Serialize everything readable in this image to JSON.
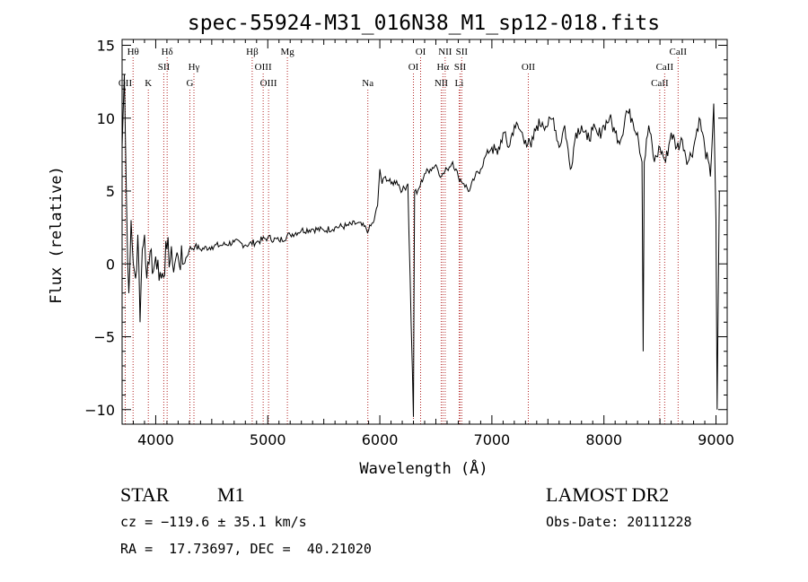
{
  "chart_data": {
    "type": "line",
    "title": "spec-55924-M31_016N38_M1_sp12-018.fits",
    "xlabel": "Wavelength (Å)",
    "ylabel": "Flux (relative)",
    "xlim": [
      3700,
      9100
    ],
    "ylim": [
      -11,
      15.4
    ],
    "xticks": [
      4000,
      5000,
      6000,
      7000,
      8000,
      9000
    ],
    "yticks": [
      -10,
      -5,
      0,
      5,
      10,
      15
    ],
    "grid": false,
    "line_color": "#000000",
    "marker_color": "#b22222",
    "spectral_lines": [
      {
        "label": "Hθ",
        "x": 3798,
        "row": 0
      },
      {
        "label": "OII",
        "x": 3728,
        "row": 2
      },
      {
        "label": "K",
        "x": 3934,
        "row": 2
      },
      {
        "label": "Hδ",
        "x": 4102,
        "row": 0
      },
      {
        "label": "SII",
        "x": 4072,
        "row": 1
      },
      {
        "label": "Hγ",
        "x": 4341,
        "row": 1
      },
      {
        "label": "G",
        "x": 4305,
        "row": 2
      },
      {
        "label": "Hβ",
        "x": 4861,
        "row": 0
      },
      {
        "label": "OIII",
        "x": 4959,
        "row": 1
      },
      {
        "label": "OIII",
        "x": 5007,
        "row": 2
      },
      {
        "label": "Mg",
        "x": 5175,
        "row": 0
      },
      {
        "label": "Na",
        "x": 5893,
        "row": 2
      },
      {
        "label": "OI",
        "x": 6364,
        "row": 0
      },
      {
        "label": "OI",
        "x": 6300,
        "row": 1
      },
      {
        "label": "NII",
        "x": 6583,
        "row": 0
      },
      {
        "label": "Hα",
        "x": 6563,
        "row": 1
      },
      {
        "label": "NII",
        "x": 6548,
        "row": 2
      },
      {
        "label": "SII",
        "x": 6731,
        "row": 0
      },
      {
        "label": "SII",
        "x": 6716,
        "row": 1
      },
      {
        "label": "Li",
        "x": 6708,
        "row": 2
      },
      {
        "label": "OII",
        "x": 7325,
        "row": 1
      },
      {
        "label": "CaII",
        "x": 8662,
        "row": 0
      },
      {
        "label": "CaII",
        "x": 8542,
        "row": 1
      },
      {
        "label": "CaII",
        "x": 8498,
        "row": 2
      }
    ],
    "series": [
      {
        "x": [
          3700,
          3720,
          3740,
          3760,
          3780,
          3800,
          3820,
          3840,
          3860,
          3880,
          3900,
          3920,
          3940,
          3960,
          3980,
          4000,
          4050,
          4100,
          4150,
          4200,
          4250,
          4300,
          4350,
          4400,
          4500,
          4600,
          4700,
          4800,
          4900,
          5000,
          5100,
          5200,
          5300,
          5400,
          5500,
          5600,
          5700,
          5800,
          5900,
          5950,
          5980,
          6000,
          6020,
          6050,
          6100,
          6150,
          6200,
          6250,
          6300,
          6310,
          6330,
          6350,
          6400,
          6450,
          6500,
          6550,
          6600,
          6650,
          6700,
          6750,
          6800,
          6850,
          6900,
          6950,
          7000,
          7050,
          7100,
          7150,
          7200,
          7250,
          7300,
          7350,
          7400,
          7450,
          7500,
          7550,
          7600,
          7650,
          7700,
          7750,
          7800,
          7850,
          7900,
          7950,
          8000,
          8050,
          8100,
          8150,
          8200,
          8250,
          8300,
          8340,
          8350,
          8360,
          8400,
          8450,
          8500,
          8550,
          8600,
          8650,
          8700,
          8750,
          8800,
          8850,
          8900,
          8950,
          8980,
          9000,
          9010,
          9030
        ],
        "y": [
          8,
          13,
          4,
          -2,
          3,
          0,
          -1,
          2,
          -4,
          1,
          2,
          -1,
          0,
          1,
          -0.5,
          0.5,
          -1,
          1,
          0,
          0.5,
          0,
          1,
          1.2,
          1,
          1.2,
          1.3,
          1.5,
          1.3,
          1.5,
          1.8,
          1.6,
          2,
          2.3,
          2.4,
          2.3,
          2.5,
          2.6,
          2.8,
          2.3,
          3,
          4,
          6.5,
          5.5,
          6,
          5.5,
          5.7,
          5,
          5.5,
          -10.5,
          5,
          4.8,
          5.2,
          6.2,
          6.5,
          6.8,
          6,
          6.5,
          7,
          6,
          5.5,
          5,
          6,
          6.5,
          7.5,
          8,
          7.5,
          9,
          8,
          9.5,
          9.2,
          8.5,
          8,
          9.5,
          9.7,
          9.5,
          10,
          8,
          9.5,
          6.5,
          9,
          9.5,
          8.5,
          9.2,
          8.8,
          9.5,
          10,
          9,
          8.5,
          10.5,
          10,
          9,
          7,
          -6,
          7,
          9.5,
          7,
          8,
          7,
          9,
          8,
          8.5,
          7,
          8,
          10,
          8,
          6,
          11,
          3,
          -10,
          5
        ]
      }
    ]
  },
  "footer": {
    "object_type": "STAR",
    "subclass": "M1",
    "survey": "LAMOST DR2",
    "cz": "cz = −119.6 ± 35.1 km/s",
    "obs_date": "Obs-Date: 20111228",
    "coords": "RA =  17.73697, DEC =  40.21020"
  }
}
